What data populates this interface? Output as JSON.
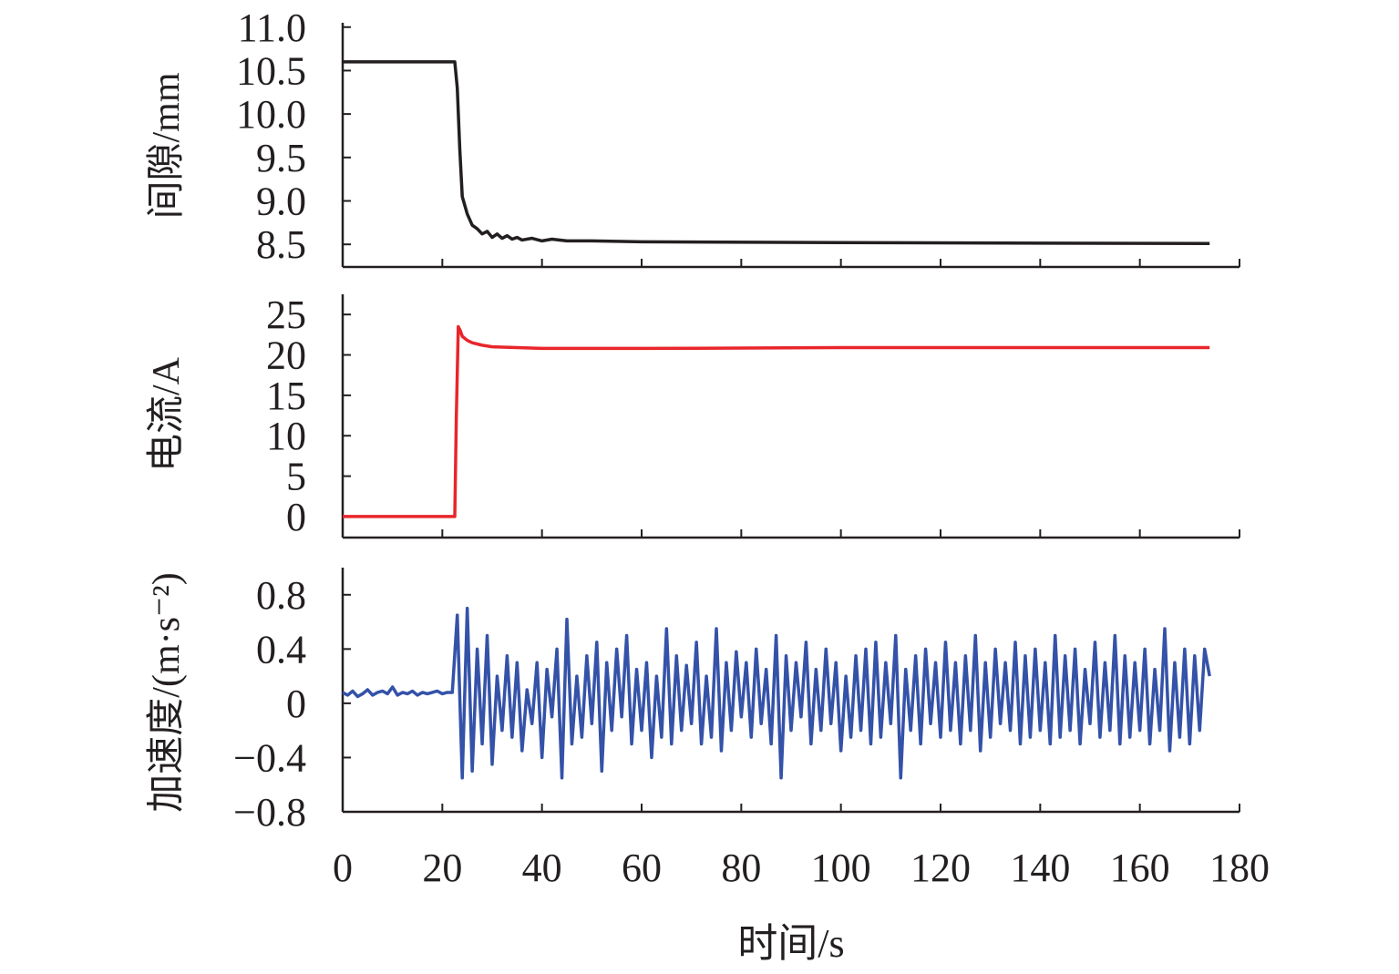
{
  "chart_data": [
    {
      "type": "line",
      "ylabel": "间隙/mm",
      "ylim": [
        8.24,
        11.05
      ],
      "yticks": [
        "8.5",
        "9.0",
        "9.5",
        "10.0",
        "10.5",
        "11.0"
      ],
      "ytick_values": [
        8.5,
        9.0,
        9.5,
        10.0,
        10.5,
        11.0
      ],
      "color": "#231f20",
      "series": {
        "name": "间隙",
        "x": [
          0,
          22.5,
          23,
          23.5,
          24,
          24.5,
          25,
          26,
          27,
          28,
          29,
          30,
          31,
          32,
          33,
          34,
          35,
          36,
          38,
          40,
          42,
          45,
          50,
          60,
          100,
          174
        ],
        "y": [
          10.6,
          10.6,
          10.3,
          9.6,
          9.05,
          8.95,
          8.85,
          8.72,
          8.68,
          8.62,
          8.65,
          8.58,
          8.62,
          8.57,
          8.6,
          8.56,
          8.58,
          8.55,
          8.57,
          8.54,
          8.56,
          8.54,
          8.54,
          8.53,
          8.52,
          8.51
        ]
      }
    },
    {
      "type": "line",
      "ylabel": "电流/A",
      "ylim": [
        -2.6,
        27.5
      ],
      "yticks": [
        "0",
        "5",
        "10",
        "15",
        "20",
        "25"
      ],
      "ytick_values": [
        0,
        5,
        10,
        15,
        20,
        25
      ],
      "color": "#e8262b",
      "series": {
        "name": "电流",
        "x": [
          0,
          22.5,
          22.8,
          23.2,
          23.6,
          24,
          25,
          26,
          28,
          30,
          35,
          40,
          60,
          100,
          174
        ],
        "y": [
          0,
          0,
          12,
          23.5,
          23,
          22.3,
          21.8,
          21.5,
          21.2,
          21.0,
          20.9,
          20.8,
          20.8,
          20.9,
          20.9
        ]
      }
    },
    {
      "type": "line",
      "ylabel": "加速度/(m·s⁻²)",
      "ylim": [
        -0.8,
        1.0
      ],
      "yticks": [
        "−0.8",
        "−0.4",
        "0",
        "0.4",
        "0.8"
      ],
      "ytick_values": [
        -0.8,
        -0.4,
        0,
        0.4,
        0.8
      ],
      "color": "#3452a8",
      "series": {
        "name": "加速度",
        "t0": 0,
        "dt": 1,
        "values": [
          0.08,
          0.06,
          0.09,
          0.05,
          0.07,
          0.1,
          0.06,
          0.08,
          0.09,
          0.07,
          0.12,
          0.06,
          0.08,
          0.07,
          0.09,
          0.06,
          0.08,
          0.07,
          0.08,
          0.09,
          0.07,
          0.08,
          0.08,
          0.65,
          -0.55,
          0.7,
          -0.5,
          0.4,
          -0.3,
          0.5,
          -0.45,
          0.2,
          -0.2,
          0.35,
          -0.25,
          0.3,
          -0.35,
          0.1,
          -0.15,
          0.3,
          -0.4,
          0.25,
          -0.1,
          0.4,
          -0.55,
          0.62,
          -0.3,
          0.2,
          -0.25,
          0.35,
          -0.15,
          0.45,
          -0.5,
          0.3,
          -0.2,
          0.4,
          -0.1,
          0.5,
          -0.3,
          0.25,
          -0.2,
          0.3,
          -0.4,
          0.2,
          -0.25,
          0.55,
          -0.3,
          0.35,
          -0.2,
          0.28,
          -0.15,
          0.45,
          -0.3,
          0.2,
          -0.25,
          0.55,
          -0.35,
          0.3,
          -0.2,
          0.38,
          -0.1,
          0.3,
          -0.25,
          0.4,
          -0.15,
          0.25,
          -0.3,
          0.5,
          -0.55,
          0.35,
          -0.2,
          0.3,
          -0.1,
          0.45,
          -0.3,
          0.25,
          -0.2,
          0.4,
          -0.15,
          0.3,
          -0.35,
          0.2,
          -0.25,
          0.35,
          -0.2,
          0.4,
          -0.3,
          0.45,
          -0.25,
          0.3,
          -0.15,
          0.5,
          -0.55,
          0.25,
          -0.2,
          0.35,
          -0.3,
          0.4,
          -0.15,
          0.3,
          -0.25,
          0.45,
          -0.2,
          0.3,
          -0.3,
          0.35,
          -0.2,
          0.5,
          -0.35,
          0.3,
          -0.25,
          0.4,
          -0.15,
          0.3,
          -0.2,
          0.45,
          -0.3,
          0.35,
          -0.25,
          0.4,
          -0.2,
          0.3,
          -0.3,
          0.5,
          -0.25,
          0.35,
          -0.2,
          0.4,
          -0.3,
          0.25,
          -0.15,
          0.45,
          -0.25,
          0.3,
          -0.2,
          0.5,
          -0.3,
          0.35,
          -0.25,
          0.3,
          -0.2,
          0.4,
          -0.3,
          0.25,
          -0.2,
          0.55,
          -0.35,
          0.3,
          -0.25,
          0.4,
          -0.3,
          0.35,
          -0.2,
          0.4,
          0.2
        ]
      }
    }
  ],
  "x_axis": {
    "label": "时间/s",
    "xlim": [
      0,
      180
    ],
    "ticks": [
      "0",
      "20",
      "40",
      "60",
      "80",
      "100",
      "120",
      "140",
      "160",
      "180"
    ],
    "tick_values": [
      0,
      20,
      40,
      60,
      80,
      100,
      120,
      140,
      160,
      180
    ]
  }
}
